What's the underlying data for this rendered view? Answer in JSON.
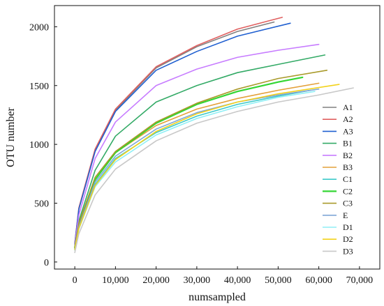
{
  "chart_data": {
    "type": "line",
    "title": "",
    "xlabel": "numsampled",
    "ylabel": "OTU number",
    "xlim": [
      -5000,
      75000
    ],
    "ylim": [
      -60,
      2180
    ],
    "grid": false,
    "legend_position": "right",
    "x_ticks": [
      0,
      10000,
      20000,
      30000,
      40000,
      50000,
      60000,
      70000
    ],
    "x_tick_labels": [
      "0",
      "10,000",
      "20,000",
      "30,000",
      "40,000",
      "50,000",
      "60,000",
      "70,000"
    ],
    "y_ticks": [
      0,
      500,
      1000,
      1500,
      2000
    ],
    "y_tick_labels": [
      "0",
      "500",
      "1000",
      "1500",
      "2000"
    ],
    "series": [
      {
        "name": "A1",
        "color": "#808080",
        "x": [
          0,
          1000,
          5000,
          10000,
          20000,
          30000,
          40000,
          49000
        ],
        "y": [
          150,
          450,
          950,
          1290,
          1650,
          1830,
          1960,
          2040
        ]
      },
      {
        "name": "A2",
        "color": "#E06060",
        "x": [
          0,
          1000,
          5000,
          10000,
          20000,
          30000,
          40000,
          51000
        ],
        "y": [
          160,
          460,
          960,
          1300,
          1660,
          1840,
          1980,
          2080
        ]
      },
      {
        "name": "A3",
        "color": "#1F5FD0",
        "x": [
          0,
          1000,
          5000,
          10000,
          20000,
          30000,
          40000,
          53000
        ],
        "y": [
          155,
          450,
          940,
          1280,
          1630,
          1790,
          1920,
          2030
        ]
      },
      {
        "name": "B1",
        "color": "#33AA66",
        "x": [
          0,
          1000,
          5000,
          10000,
          20000,
          30000,
          40000,
          50000,
          61500
        ],
        "y": [
          130,
          350,
          780,
          1070,
          1360,
          1500,
          1610,
          1680,
          1760
        ]
      },
      {
        "name": "B2",
        "color": "#C77CFF",
        "x": [
          0,
          1000,
          5000,
          10000,
          20000,
          30000,
          40000,
          50000,
          60000
        ],
        "y": [
          145,
          400,
          880,
          1190,
          1500,
          1640,
          1740,
          1800,
          1850
        ]
      },
      {
        "name": "B3",
        "color": "#E3A03A",
        "x": [
          0,
          1000,
          5000,
          10000,
          20000,
          30000,
          40000,
          50000,
          60000
        ],
        "y": [
          120,
          320,
          700,
          930,
          1160,
          1300,
          1390,
          1460,
          1520
        ]
      },
      {
        "name": "C1",
        "color": "#3CC9C9",
        "x": [
          0,
          1000,
          5000,
          10000,
          20000,
          30000,
          40000,
          50000,
          58000
        ],
        "y": [
          110,
          300,
          660,
          880,
          1100,
          1240,
          1340,
          1410,
          1460
        ]
      },
      {
        "name": "C2",
        "color": "#33D633",
        "x": [
          0,
          1000,
          5000,
          10000,
          20000,
          30000,
          40000,
          50000,
          56000
        ],
        "y": [
          120,
          320,
          700,
          930,
          1180,
          1340,
          1450,
          1530,
          1570
        ]
      },
      {
        "name": "C3",
        "color": "#A99A2A",
        "x": [
          0,
          1000,
          5000,
          10000,
          20000,
          30000,
          40000,
          50000,
          62000
        ],
        "y": [
          125,
          330,
          720,
          940,
          1190,
          1350,
          1470,
          1560,
          1630
        ]
      },
      {
        "name": "E",
        "color": "#7FA6D6",
        "x": [
          0,
          1000,
          5000,
          10000,
          20000,
          30000,
          40000,
          50000,
          60000
        ],
        "y": [
          110,
          300,
          680,
          900,
          1130,
          1270,
          1360,
          1420,
          1470
        ]
      },
      {
        "name": "D1",
        "color": "#8FEFF5",
        "x": [
          0,
          1000,
          5000,
          10000,
          20000,
          30000,
          40000,
          50000,
          59000
        ],
        "y": [
          100,
          280,
          640,
          850,
          1080,
          1220,
          1320,
          1400,
          1450
        ]
      },
      {
        "name": "D2",
        "color": "#F2D21B",
        "x": [
          0,
          1000,
          5000,
          10000,
          20000,
          30000,
          40000,
          50000,
          65000
        ],
        "y": [
          105,
          285,
          650,
          870,
          1110,
          1260,
          1360,
          1430,
          1510
        ]
      },
      {
        "name": "D3",
        "color": "#C8C8C8",
        "x": [
          0,
          1000,
          5000,
          10000,
          20000,
          30000,
          40000,
          50000,
          60000,
          68500
        ],
        "y": [
          80,
          240,
          570,
          790,
          1030,
          1180,
          1280,
          1360,
          1420,
          1480
        ]
      }
    ]
  }
}
